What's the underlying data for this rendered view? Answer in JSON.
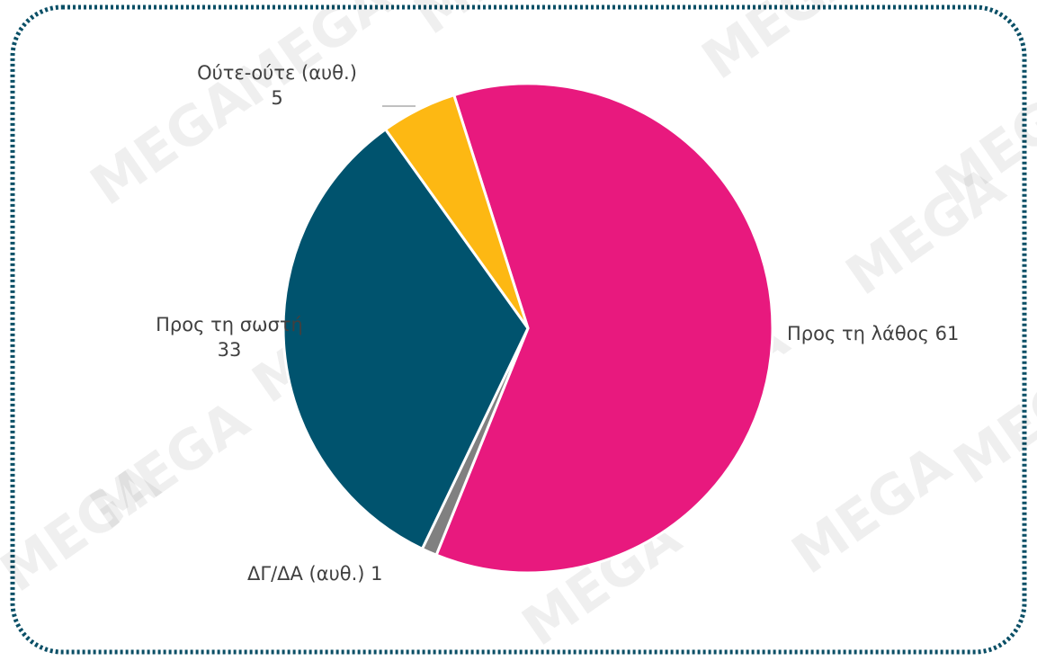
{
  "chart_data": {
    "type": "pie",
    "watermark": "MEGA",
    "series": [
      {
        "name": "Προς τη λάθος",
        "color": "#E8197E",
        "values": [
          61
        ]
      },
      {
        "name": "ΔΓ/ΔΑ (αυθ.)",
        "color": "#808080",
        "values": [
          1
        ]
      },
      {
        "name": "Προς τη σωστή",
        "color": "#00536E",
        "values": [
          33
        ]
      },
      {
        "name": "Ούτε-ούτε (αυθ.)",
        "color": "#FDB813",
        "values": [
          5
        ]
      }
    ]
  }
}
